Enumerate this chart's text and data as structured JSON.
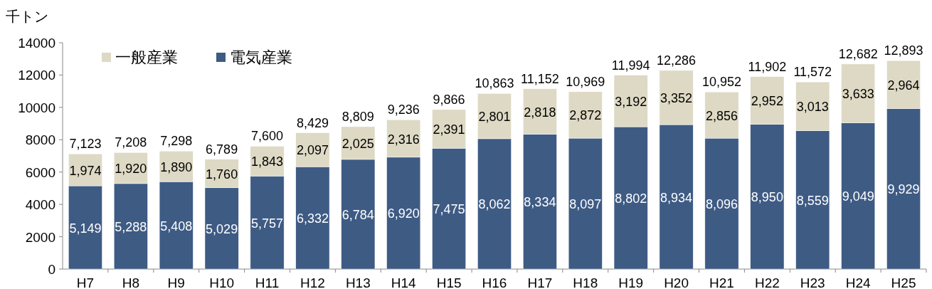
{
  "chart_data": {
    "type": "bar",
    "stacked": true,
    "ylabel": "千トン",
    "categories": [
      "H7",
      "H8",
      "H9",
      "H10",
      "H11",
      "H12",
      "H13",
      "H14",
      "H15",
      "H16",
      "H17",
      "H18",
      "H19",
      "H20",
      "H21",
      "H22",
      "H23",
      "H24",
      "H25"
    ],
    "series": [
      {
        "name": "電気産業",
        "color": "#3e5b84",
        "values": [
          5149,
          5288,
          5408,
          5029,
          5757,
          6332,
          6784,
          6920,
          7475,
          8062,
          8334,
          8097,
          8802,
          8934,
          8096,
          8950,
          8559,
          9049,
          9929
        ],
        "value_labels": [
          "5,149",
          "5,288",
          "5,408",
          "5,029",
          "5,757",
          "6,332",
          "6,784",
          "6,920",
          "7,475",
          "8,062",
          "8,334",
          "8,097",
          "8,802",
          "8,934",
          "8,096",
          "8,950",
          "8,559",
          "9,049",
          "9,929"
        ]
      },
      {
        "name": "一般産業",
        "color": "#ddd9c4",
        "values": [
          1974,
          1920,
          1890,
          1760,
          1843,
          2097,
          2025,
          2316,
          2391,
          2801,
          2818,
          2872,
          3192,
          3352,
          2856,
          2952,
          3013,
          3633,
          2964
        ],
        "value_labels": [
          "1,974",
          "1,920",
          "1,890",
          "1,760",
          "1,843",
          "2,097",
          "2,025",
          "2,316",
          "2,391",
          "2,801",
          "2,818",
          "2,872",
          "3,192",
          "3,352",
          "2,856",
          "2,952",
          "3,013",
          "3,633",
          "2,964"
        ]
      }
    ],
    "totals": [
      "7,123",
      "7,208",
      "7,298",
      "6,789",
      "7,600",
      "8,429",
      "8,809",
      "9,236",
      "9,866",
      "10,863",
      "11,152",
      "10,969",
      "11,994",
      "12,286",
      "10,952",
      "11,902",
      "11,572",
      "12,682",
      "12,893"
    ],
    "ylim": [
      0,
      14000
    ],
    "yticks": [
      0,
      2000,
      4000,
      6000,
      8000,
      10000,
      12000,
      14000
    ],
    "legend": "top left"
  }
}
